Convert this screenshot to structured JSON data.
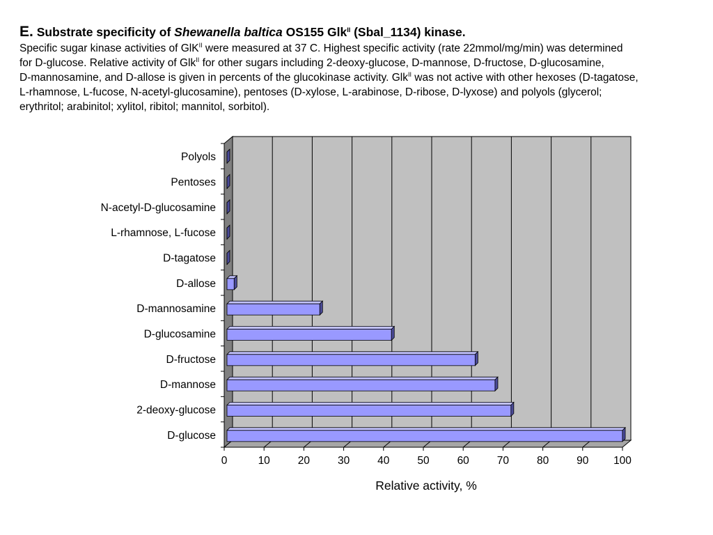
{
  "caption": {
    "letter": "E.",
    "title_pre": "Substrate specificity of",
    "title_species": "Shewanella baltica",
    "title_mid": "OS155 Glk",
    "title_sup": "II",
    "title_post": "(Sbal_1134) kinase.",
    "desc_line1_pre": "Specific sugar kinase activities of GlK",
    "desc_line1_sup": "II",
    "desc_line1_post": " were measured at 37 C. Highest specific activity (rate 22mmol/mg/min) was determined",
    "desc_line2_pre": "for D-glucose. Relative activity of Glk",
    "desc_line2_sup": "II",
    "desc_line2_post": " for other sugars including 2-deoxy-glucose, D-mannose, D-fructose, D-glucosamine,",
    "desc_line3_pre": "D-mannosamine, and D-allose is given in percents of the glucokinase activity. Glk",
    "desc_line3_sup": "II",
    "desc_line3_post": " was not active with other hexoses (D-tagatose,",
    "desc_line4": "L-rhamnose, L-fucose, N-acetyl-glucosamine), pentoses (D-xylose, L-arabinose, D-ribose, D-lyxose) and polyols (glycerol;",
    "desc_line5": "erythritol; arabinitol; xylitol, ribitol; mannitol, sorbitol)."
  },
  "chart_data": {
    "type": "bar",
    "orientation": "horizontal",
    "style": "3d",
    "categories": [
      "D-glucose",
      "2-deoxy-glucose",
      "D-mannose",
      "D-fructose",
      "D-glucosamine",
      "D-mannosamine",
      "D-allose",
      "D-tagatose",
      "L-rhamnose, L-fucose",
      "N-acetyl-D-glucosamine",
      "Pentoses",
      "Polyols"
    ],
    "values": [
      100,
      72,
      68,
      63,
      42,
      24,
      2.5,
      0,
      0,
      0,
      0,
      0
    ],
    "xlabel": "Relative activity, %",
    "ylabel": "",
    "xlim": [
      0,
      100
    ],
    "xticks": [
      "0",
      "10",
      "20",
      "30",
      "40",
      "50",
      "60",
      "70",
      "80",
      "90",
      "100"
    ],
    "grid": true,
    "legend": "none",
    "colors": {
      "bar_front": "#9999ff",
      "bar_top": "#c2c2ff",
      "bar_side": "#4b4b99",
      "plot_back": "#c0c0c0",
      "plot_wall": "#808080",
      "plot_floor": "#a6a6a6",
      "gridline": "#000000"
    }
  }
}
